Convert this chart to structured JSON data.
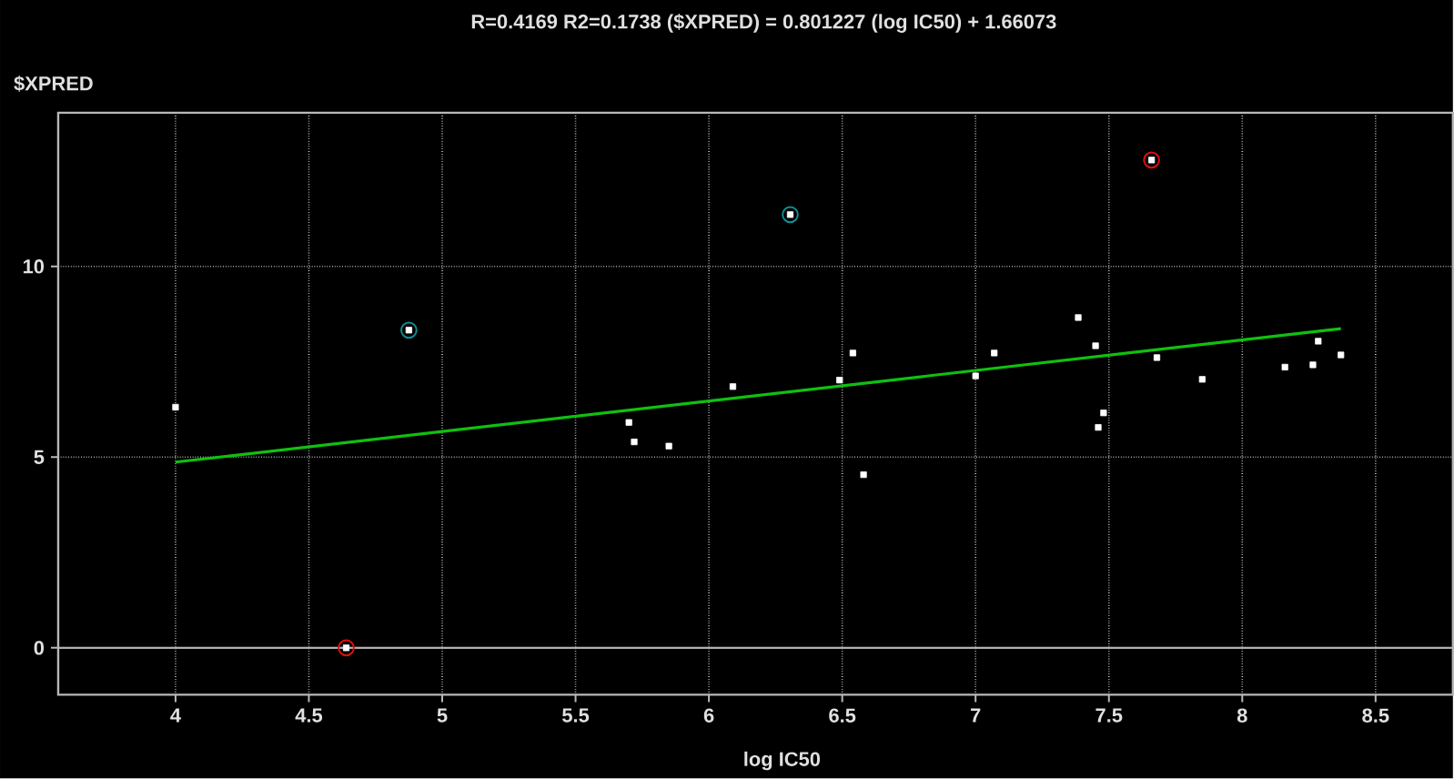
{
  "chart_data": {
    "type": "scatter",
    "title": "R=0.4169 R2=0.1738    ($XPRED) = 0.801227 (log IC50) + 1.66073",
    "xlabel": "log IC50",
    "ylabel": "$XPRED",
    "xlim": [
      3.56,
      8.79
    ],
    "ylim": [
      -1.23,
      14.03
    ],
    "xticks": [
      4,
      4.5,
      5,
      5.5,
      6,
      6.5,
      7,
      7.5,
      8,
      8.5
    ],
    "yticks": [
      0,
      5,
      10
    ],
    "grid": true,
    "ref_lines": [
      {
        "axis": "y",
        "value": 0,
        "color": "#b0b0b0"
      }
    ],
    "series": [
      {
        "marker": "square",
        "color": "#ffffff",
        "x": [
          4.0,
          4.64,
          4.875,
          5.7,
          5.72,
          5.85,
          6.09,
          6.305,
          6.49,
          6.54,
          6.58,
          7.0,
          7.07,
          7.385,
          7.45,
          7.48,
          7.46,
          7.66,
          7.68,
          7.85,
          8.16,
          8.265,
          8.285,
          8.37
        ],
        "values": [
          6.31,
          0.0,
          8.33,
          5.91,
          5.4,
          5.29,
          6.85,
          11.36,
          7.02,
          7.73,
          4.54,
          7.13,
          7.73,
          8.66,
          7.92,
          6.16,
          5.78,
          12.79,
          7.61,
          7.04,
          7.36,
          7.42,
          8.04,
          7.68
        ]
      },
      {
        "marker": "circle",
        "color": "#0e8f94",
        "x": [
          4.875,
          6.305
        ],
        "values": [
          8.33,
          11.36
        ]
      },
      {
        "marker": "circle",
        "color": "#e01010",
        "x": [
          4.64,
          7.66
        ],
        "values": [
          0.0,
          12.79
        ]
      },
      {
        "type": "line",
        "line_style": "solid",
        "color": "#10c010",
        "x": [
          4.0,
          8.37
        ],
        "values": [
          4.87,
          8.37
        ]
      }
    ]
  }
}
